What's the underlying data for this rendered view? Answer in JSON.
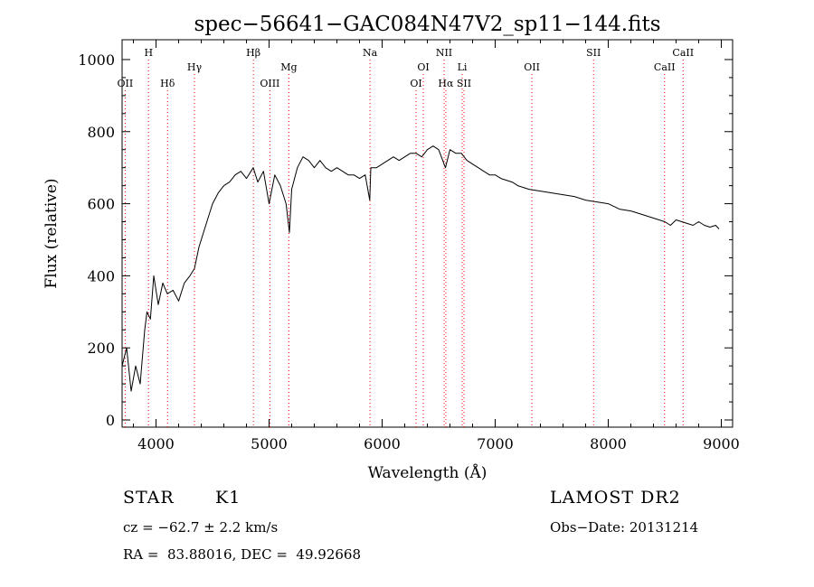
{
  "chart_data": {
    "type": "line",
    "title": "spec−56641−GAC084N47V2_sp11−144.fits",
    "xlabel": "Wavelength (Å)",
    "ylabel": "Flux (relative)",
    "xlim": [
      3700,
      9100
    ],
    "ylim": [
      -20,
      1055
    ],
    "xticks": [
      4000,
      5000,
      6000,
      7000,
      8000,
      9000
    ],
    "xtick_labels": [
      "4000",
      "5000",
      "6000",
      "7000",
      "8000",
      "9000"
    ],
    "yticks": [
      0,
      200,
      400,
      600,
      800,
      1000
    ],
    "ytick_labels": [
      "0",
      "200",
      "400",
      "600",
      "800",
      "1000"
    ],
    "line_color": "#000000",
    "marker_color": "#ff0000",
    "series": [
      {
        "x": [
          3700,
          3740,
          3780,
          3820,
          3860,
          3900,
          3920,
          3950,
          3980,
          4020,
          4060,
          4100,
          4150,
          4200,
          4250,
          4300,
          4340,
          4380,
          4420,
          4460,
          4500,
          4550,
          4600,
          4650,
          4700,
          4750,
          4800,
          4860,
          4900,
          4950,
          5000,
          5050,
          5100,
          5150,
          5180,
          5200,
          5250,
          5300,
          5350,
          5400,
          5450,
          5500,
          5550,
          5600,
          5650,
          5700,
          5750,
          5800,
          5850,
          5890,
          5900,
          5950,
          6000,
          6050,
          6100,
          6150,
          6200,
          6250,
          6300,
          6350,
          6400,
          6450,
          6500,
          6560,
          6600,
          6650,
          6700,
          6750,
          6800,
          6850,
          6900,
          6950,
          7000,
          7050,
          7100,
          7150,
          7200,
          7300,
          7400,
          7500,
          7600,
          7700,
          7800,
          7900,
          8000,
          8100,
          8200,
          8300,
          8400,
          8500,
          8550,
          8600,
          8650,
          8700,
          8750,
          8800,
          8850,
          8900,
          8950,
          8980
        ],
        "y": [
          150,
          200,
          80,
          150,
          100,
          250,
          300,
          280,
          400,
          320,
          380,
          350,
          360,
          330,
          380,
          400,
          420,
          480,
          520,
          560,
          600,
          630,
          650,
          660,
          680,
          690,
          670,
          700,
          660,
          690,
          600,
          680,
          650,
          600,
          520,
          640,
          700,
          730,
          720,
          700,
          720,
          700,
          690,
          700,
          690,
          680,
          680,
          670,
          680,
          610,
          700,
          700,
          710,
          720,
          730,
          720,
          730,
          740,
          740,
          730,
          750,
          760,
          750,
          700,
          750,
          740,
          740,
          720,
          710,
          700,
          690,
          680,
          680,
          670,
          665,
          660,
          650,
          640,
          635,
          630,
          625,
          620,
          610,
          605,
          600,
          585,
          580,
          570,
          560,
          550,
          540,
          555,
          550,
          545,
          540,
          550,
          540,
          535,
          540,
          530
        ]
      }
    ],
    "lines": [
      {
        "label": "OII",
        "x": 3727,
        "row": 2
      },
      {
        "label": "H",
        "x": 3934,
        "row": 0
      },
      {
        "label": "Hδ",
        "x": 4102,
        "row": 2
      },
      {
        "label": "Hγ",
        "x": 4340,
        "row": 1
      },
      {
        "label": "Hβ",
        "x": 4861,
        "row": 0
      },
      {
        "label": "OIII",
        "x": 5007,
        "row": 2
      },
      {
        "label": "Mg",
        "x": 5175,
        "row": 1
      },
      {
        "label": "Na",
        "x": 5893,
        "row": 0
      },
      {
        "label": "OI",
        "x": 6300,
        "row": 2
      },
      {
        "label": "OI",
        "x": 6364,
        "row": 1
      },
      {
        "label": "NII",
        "x": 6548,
        "row": 0
      },
      {
        "label": "Hα",
        "x": 6563,
        "row": 2
      },
      {
        "label": "Li",
        "x": 6708,
        "row": 1
      },
      {
        "label": "SII",
        "x": 6724,
        "row": 2
      },
      {
        "label": "OII",
        "x": 7325,
        "row": 1
      },
      {
        "label": "SII",
        "x": 7870,
        "row": 0
      },
      {
        "label": "CaII",
        "x": 8498,
        "row": 1
      },
      {
        "label": "CaII",
        "x": 8662,
        "row": 0
      }
    ]
  },
  "info": {
    "class_label": "STAR",
    "subclass": "K1",
    "survey": "LAMOST DR2",
    "cz": "cz = −62.7 ± 2.2 km/s",
    "obs_date": "Obs−Date: 20131214",
    "coords": "RA =  83.88016, DEC =  49.92668"
  }
}
